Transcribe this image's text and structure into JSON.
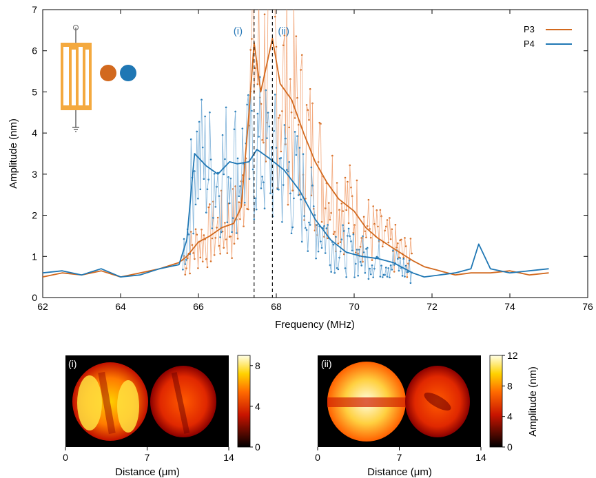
{
  "colors": {
    "p3": "#d2691e",
    "p3_light": "#f2a77a",
    "p4": "#1f77b4",
    "p4_light": "#7fb2d9",
    "annot": "#2a7ab8",
    "device": "#f4a93f"
  },
  "chart_data": [
    {
      "type": "line",
      "title": "",
      "xlabel": "Frequency (MHz)",
      "ylabel": "Amplitude (nm)",
      "xlim": [
        62,
        76
      ],
      "ylim": [
        0,
        7
      ],
      "xticks": [
        "62",
        "64",
        "66",
        "68",
        "70",
        "72",
        "74",
        "76"
      ],
      "yticks": [
        "0",
        "1",
        "2",
        "3",
        "4",
        "5",
        "6",
        "7"
      ],
      "legend": {
        "placement": "top-right",
        "entries": [
          "P3",
          "P4"
        ]
      },
      "annotations": [
        {
          "label": "(i)",
          "x": 67.43
        },
        {
          "label": "(ii)",
          "x": 67.9
        }
      ],
      "series": [
        {
          "name": "P3",
          "style": "smoothed line + raw points (65.6–71.5 MHz)",
          "x": [
            62.0,
            62.5,
            63.0,
            63.5,
            64.0,
            64.5,
            65.0,
            65.5,
            65.7,
            66.0,
            66.3,
            66.6,
            66.9,
            67.1,
            67.3,
            67.43,
            67.6,
            67.9,
            68.1,
            68.4,
            68.7,
            69.0,
            69.3,
            69.6,
            70.0,
            70.3,
            70.6,
            71.0,
            71.5,
            71.8,
            72.2,
            72.6,
            73.0,
            73.5,
            74.0,
            74.5,
            75.0
          ],
          "values": [
            0.5,
            0.6,
            0.55,
            0.65,
            0.5,
            0.6,
            0.7,
            0.85,
            1.0,
            1.35,
            1.5,
            1.7,
            1.8,
            2.2,
            4.5,
            6.2,
            5.0,
            6.3,
            5.2,
            4.8,
            4.0,
            3.3,
            2.8,
            2.4,
            2.1,
            1.7,
            1.45,
            1.2,
            0.9,
            0.75,
            0.65,
            0.55,
            0.6,
            0.6,
            0.65,
            0.55,
            0.6
          ]
        },
        {
          "name": "P4",
          "style": "smoothed line + raw points (65.6–71.5 MHz)",
          "x": [
            62.0,
            62.5,
            63.0,
            63.5,
            64.0,
            64.5,
            65.0,
            65.5,
            65.7,
            65.9,
            66.2,
            66.5,
            66.8,
            67.0,
            67.3,
            67.5,
            67.8,
            68.2,
            68.6,
            69.0,
            69.4,
            69.8,
            70.2,
            70.6,
            71.0,
            71.5,
            71.8,
            72.2,
            72.6,
            73.0,
            73.2,
            73.5,
            74.0,
            74.5,
            75.0
          ],
          "values": [
            0.6,
            0.65,
            0.55,
            0.7,
            0.5,
            0.55,
            0.7,
            0.8,
            1.4,
            3.5,
            3.2,
            3.0,
            3.3,
            3.25,
            3.3,
            3.6,
            3.4,
            3.1,
            2.6,
            1.9,
            1.4,
            1.1,
            1.0,
            0.95,
            0.85,
            0.6,
            0.5,
            0.55,
            0.6,
            0.7,
            1.3,
            0.7,
            0.6,
            0.65,
            0.7
          ]
        }
      ]
    },
    {
      "type": "heatmap",
      "panel_label": "(i)",
      "xlabel": "Distance (μm)",
      "xticks": [
        "0",
        "7",
        "14"
      ],
      "colorbar_ticks": [
        "0",
        "4",
        "8"
      ],
      "colorbar_range": [
        0,
        9
      ],
      "colormap": "hot"
    },
    {
      "type": "heatmap",
      "panel_label": "(ii)",
      "xlabel": "Distance (μm)",
      "xticks": [
        "0",
        "7",
        "14"
      ],
      "colorbar_ticks": [
        "0",
        "4",
        "8",
        "12"
      ],
      "colorbar_range": [
        0,
        12
      ],
      "colorbar_label": "Amplitude (nm)",
      "colormap": "hot"
    }
  ]
}
